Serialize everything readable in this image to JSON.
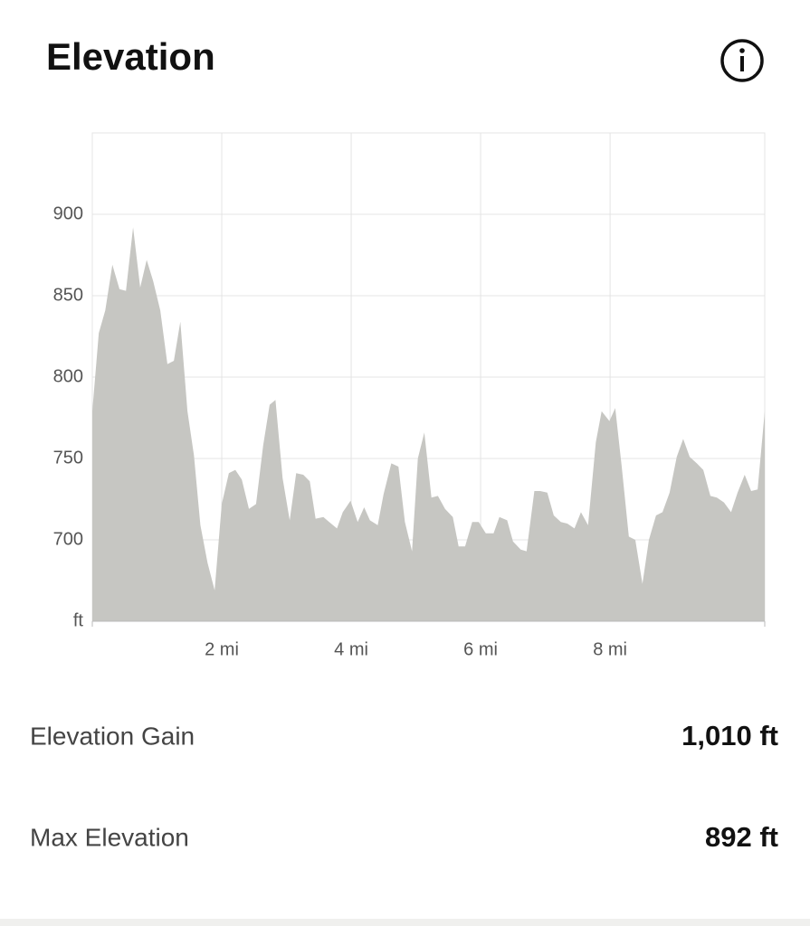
{
  "header": {
    "title": "Elevation"
  },
  "chart_data": {
    "type": "area",
    "color": "#c6c6c2",
    "grid": true,
    "x": [
      0,
      0.1,
      0.2,
      0.31,
      0.42,
      0.52,
      0.63,
      0.74,
      0.84,
      0.94,
      1.05,
      1.16,
      1.26,
      1.36,
      1.47,
      1.57,
      1.67,
      1.78,
      1.89,
      2.0,
      2.11,
      2.21,
      2.31,
      2.42,
      2.53,
      2.64,
      2.74,
      2.83,
      2.94,
      3.05,
      3.15,
      3.26,
      3.36,
      3.45,
      3.57,
      3.66,
      3.78,
      3.87,
      3.99,
      4.1,
      4.2,
      4.29,
      4.41,
      4.5,
      4.62,
      4.73,
      4.83,
      4.94,
      5.03,
      5.13,
      5.24,
      5.34,
      5.45,
      5.57,
      5.66,
      5.76,
      5.87,
      5.97,
      6.08,
      6.2,
      6.29,
      6.41,
      6.5,
      6.62,
      6.71,
      6.83,
      6.92,
      7.03,
      7.13,
      7.24,
      7.34,
      7.45,
      7.55,
      7.66,
      7.78,
      7.87,
      7.99,
      8.08,
      8.18,
      8.29,
      8.39,
      8.5,
      8.6,
      8.71,
      8.81,
      8.92,
      9.03,
      9.13,
      9.23,
      9.34,
      9.44,
      9.55,
      9.65,
      9.76,
      9.87,
      9.97,
      10.08,
      10.18,
      10.28,
      10.39
    ],
    "values": [
      779,
      827,
      841,
      869,
      854,
      853,
      892,
      855,
      872,
      859,
      841,
      808,
      810,
      834,
      779,
      752,
      709,
      686,
      669,
      722,
      741,
      743,
      737,
      719,
      722,
      758,
      783,
      786,
      738,
      712,
      741,
      740,
      736,
      713,
      714,
      711,
      707,
      717,
      724,
      711,
      720,
      712,
      709,
      728,
      747,
      745,
      711,
      693,
      750,
      766,
      726,
      727,
      719,
      714,
      696,
      696,
      711,
      711,
      704,
      704,
      714,
      712,
      699,
      694,
      693,
      730,
      730,
      729,
      715,
      711,
      710,
      707,
      717,
      709,
      760,
      779,
      773,
      781,
      745,
      702,
      700,
      673,
      700,
      715,
      717,
      729,
      751,
      762,
      751,
      747,
      743,
      727,
      726,
      723,
      717,
      729,
      740,
      730,
      731,
      779
    ],
    "xlim": [
      0,
      10.39
    ],
    "ylim": [
      650,
      950
    ],
    "xticks": [
      {
        "value": 2,
        "label": "2 mi"
      },
      {
        "value": 4,
        "label": "4 mi"
      },
      {
        "value": 6,
        "label": "6 mi"
      },
      {
        "value": 8,
        "label": "8 mi"
      }
    ],
    "yticks": [
      {
        "value": 650,
        "label": "ft"
      },
      700,
      750,
      800,
      850,
      900
    ]
  },
  "stats": [
    {
      "label": "Elevation Gain",
      "value": "1,010 ft"
    },
    {
      "label": "Max Elevation",
      "value": "892 ft"
    }
  ]
}
